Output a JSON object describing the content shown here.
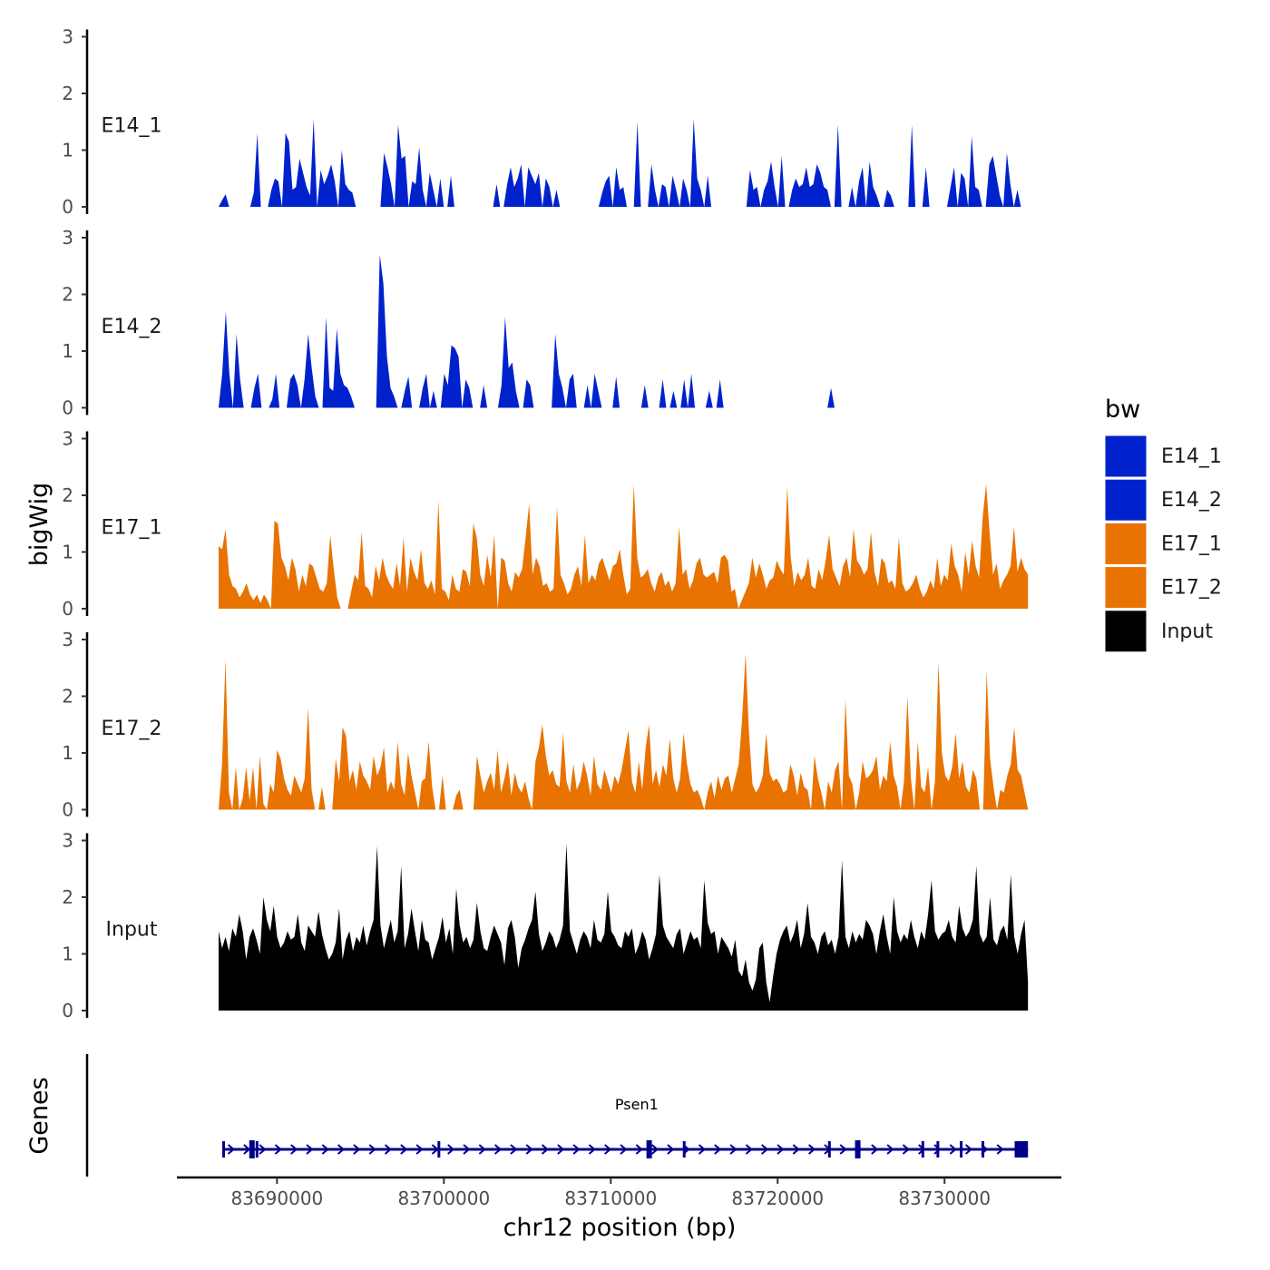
{
  "chart_data": {
    "type": "area",
    "title": "",
    "ylabel": "bigWig",
    "xlabel": "chr12 position (bp)",
    "gene_panel_label": "Genes",
    "xlim": [
      83684000,
      83737000
    ],
    "x_start": 83686500,
    "x_end": 83735000,
    "ylim": [
      0,
      3
    ],
    "y_ticks": [
      "0",
      "1",
      "2",
      "3"
    ],
    "x_ticks": [
      {
        "value": 83690000,
        "label": "83690000"
      },
      {
        "value": 83700000,
        "label": "83700000"
      },
      {
        "value": 83710000,
        "label": "83710000"
      },
      {
        "value": 83720000,
        "label": "83720000"
      },
      {
        "value": 83730000,
        "label": "83730000"
      }
    ],
    "legend": {
      "title": "bw",
      "entries": [
        {
          "name": "E14_1",
          "color": "#0022CC"
        },
        {
          "name": "E14_2",
          "color": "#0022CC"
        },
        {
          "name": "E17_1",
          "color": "#E87300"
        },
        {
          "name": "E17_2",
          "color": "#E87300"
        },
        {
          "name": "Input",
          "color": "#000000"
        }
      ]
    },
    "series": [
      {
        "name": "E14_1",
        "color": "#0022CC",
        "values": [
          0.0,
          0.12,
          0.22,
          0.0,
          0.0,
          0.0,
          0.0,
          0.0,
          0.0,
          0.0,
          0.25,
          1.3,
          0.0,
          0.0,
          0.0,
          0.3,
          0.5,
          0.45,
          0.0,
          1.3,
          1.15,
          0.3,
          0.35,
          0.85,
          0.6,
          0.35,
          0.2,
          1.55,
          0.0,
          0.65,
          0.4,
          0.55,
          0.75,
          0.45,
          0.0,
          1.0,
          0.4,
          0.3,
          0.25,
          0.0,
          0.0,
          0.0,
          0.0,
          0.0,
          0.0,
          0.0,
          0.0,
          0.95,
          0.7,
          0.4,
          0.0,
          1.45,
          0.85,
          0.9,
          0.0,
          0.45,
          0.4,
          1.05,
          0.3,
          0.0,
          0.6,
          0.3,
          0.0,
          0.5,
          0.0,
          0.0,
          0.55,
          0.0,
          0.0,
          0.0,
          0.0,
          0.0,
          0.0,
          0.0,
          0.0,
          0.0,
          0.0,
          0.0,
          0.0,
          0.4,
          0.0,
          0.0,
          0.4,
          0.7,
          0.35,
          0.5,
          0.75,
          0.0,
          0.7,
          0.55,
          0.4,
          0.6,
          0.0,
          0.5,
          0.35,
          0.0,
          0.3,
          0.0,
          0.0,
          0.0,
          0.0,
          0.0,
          0.0,
          0.0,
          0.0,
          0.0,
          0.0,
          0.0,
          0.0,
          0.25,
          0.45,
          0.55,
          0.0,
          0.7,
          0.3,
          0.35,
          0.0,
          0.0,
          0.0,
          1.5,
          0.0,
          0.0,
          0.0,
          0.75,
          0.3,
          0.0,
          0.4,
          0.35,
          0.0,
          0.55,
          0.3,
          0.0,
          0.5,
          0.3,
          0.0,
          1.55,
          0.5,
          0.3,
          0.0,
          0.55,
          0.0,
          0.0,
          0.0,
          0.0,
          0.0,
          0.0,
          0.0,
          0.0,
          0.0,
          0.0,
          0.0,
          0.65,
          0.3,
          0.35,
          0.0,
          0.3,
          0.45,
          0.8,
          0.35,
          0.0,
          0.9,
          0.0,
          0.0,
          0.3,
          0.5,
          0.35,
          0.4,
          0.7,
          0.35,
          0.4,
          0.75,
          0.6,
          0.35,
          0.3,
          0.0,
          0.0,
          1.45,
          0.0,
          0.0,
          0.0,
          0.35,
          0.0,
          0.45,
          0.7,
          0.0,
          0.8,
          0.35,
          0.2,
          0.0,
          0.0,
          0.3,
          0.2,
          0.0,
          0.0,
          0.0,
          0.0,
          0.0,
          1.45,
          0.0,
          0.0,
          0.0,
          0.7,
          0.0,
          0.0,
          0.0,
          0.0,
          0.0,
          0.0,
          0.35,
          0.7,
          0.0,
          0.6,
          0.5,
          0.0,
          1.25,
          0.35,
          0.3,
          0.0,
          0.0,
          0.75,
          0.9,
          0.55,
          0.2,
          0.0,
          0.95,
          0.4,
          0.0,
          0.3,
          0.0,
          0.0,
          0.0
        ]
      },
      {
        "name": "E14_2",
        "color": "#0022CC",
        "values": [
          0.0,
          0.6,
          1.7,
          0.6,
          0.0,
          1.3,
          0.5,
          0.0,
          0.0,
          0.0,
          0.35,
          0.6,
          0.0,
          0.0,
          0.0,
          0.15,
          0.6,
          0.0,
          0.0,
          0.0,
          0.5,
          0.6,
          0.4,
          0.0,
          0.5,
          1.3,
          0.7,
          0.2,
          0.0,
          0.0,
          1.6,
          0.35,
          0.3,
          1.4,
          0.6,
          0.4,
          0.35,
          0.2,
          0.0,
          0.0,
          0.0,
          0.0,
          0.0,
          0.0,
          0.0,
          2.7,
          2.2,
          0.9,
          0.35,
          0.2,
          0.0,
          0.0,
          0.3,
          0.55,
          0.0,
          0.0,
          0.0,
          0.35,
          0.6,
          0.0,
          0.3,
          0.0,
          0.0,
          0.6,
          0.4,
          1.1,
          1.05,
          0.9,
          0.0,
          0.5,
          0.35,
          0.0,
          0.0,
          0.0,
          0.4,
          0.0,
          0.0,
          0.0,
          0.0,
          0.4,
          1.6,
          0.7,
          0.8,
          0.3,
          0.0,
          0.0,
          0.5,
          0.4,
          0.0,
          0.0,
          0.0,
          0.0,
          0.0,
          0.0,
          1.3,
          0.6,
          0.35,
          0.0,
          0.5,
          0.6,
          0.0,
          0.0,
          0.0,
          0.4,
          0.0,
          0.6,
          0.3,
          0.0,
          0.0,
          0.0,
          0.0,
          0.55,
          0.0,
          0.0,
          0.0,
          0.0,
          0.0,
          0.0,
          0.0,
          0.4,
          0.0,
          0.0,
          0.0,
          0.0,
          0.5,
          0.0,
          0.0,
          0.3,
          0.0,
          0.0,
          0.5,
          0.0,
          0.6,
          0.0,
          0.0,
          0.0,
          0.0,
          0.3,
          0.0,
          0.0,
          0.5,
          0.0,
          0.0,
          0.0,
          0.0,
          0.0,
          0.0,
          0.0,
          0.0,
          0.0,
          0.0,
          0.0,
          0.0,
          0.0,
          0.0,
          0.0,
          0.0,
          0.0,
          0.0,
          0.0,
          0.0,
          0.0,
          0.0,
          0.0,
          0.0,
          0.0,
          0.0,
          0.0,
          0.0,
          0.0,
          0.0,
          0.35,
          0.0,
          0.0,
          0.0,
          0.0,
          0.0,
          0.0,
          0.0,
          0.0,
          0.0,
          0.0,
          0.0,
          0.0,
          0.0,
          0.0,
          0.0,
          0.0,
          0.0,
          0.0,
          0.0,
          0.0,
          0.0,
          0.0,
          0.0,
          0.0,
          0.0,
          0.0,
          0.0,
          0.0,
          0.0,
          0.0,
          0.0,
          0.0,
          0.0,
          0.0,
          0.0,
          0.0,
          0.0,
          0.0,
          0.0,
          0.0,
          0.0,
          0.0,
          0.0,
          0.0,
          0.0,
          0.0,
          0.0,
          0.0,
          0.0,
          0.0,
          0.0,
          0.0,
          0.0,
          0.0,
          0.0
        ]
      },
      {
        "name": "E17_1",
        "color": "#E87300",
        "values": [
          1.1,
          1.05,
          1.4,
          0.6,
          0.4,
          0.35,
          0.2,
          0.3,
          0.45,
          0.25,
          0.15,
          0.25,
          0.1,
          0.25,
          0.15,
          0.0,
          1.55,
          1.5,
          0.9,
          0.75,
          0.5,
          0.9,
          0.7,
          0.3,
          0.6,
          0.4,
          0.8,
          0.75,
          0.55,
          0.35,
          0.3,
          0.45,
          1.3,
          0.7,
          0.2,
          0.0,
          0.0,
          0.0,
          0.3,
          0.6,
          0.5,
          1.35,
          0.4,
          0.35,
          0.2,
          0.75,
          0.5,
          0.9,
          0.6,
          0.45,
          0.35,
          0.8,
          0.4,
          1.25,
          0.3,
          0.9,
          0.65,
          0.5,
          1.05,
          0.45,
          0.35,
          0.5,
          0.25,
          1.9,
          0.35,
          0.3,
          0.15,
          0.6,
          0.35,
          0.3,
          0.7,
          0.65,
          0.4,
          1.5,
          1.25,
          0.6,
          0.4,
          0.95,
          0.55,
          1.3,
          0.0,
          0.9,
          0.85,
          0.45,
          0.3,
          0.65,
          0.55,
          0.7,
          1.25,
          1.85,
          0.6,
          0.9,
          0.75,
          0.4,
          0.45,
          0.3,
          0.35,
          1.8,
          0.6,
          0.45,
          0.25,
          0.35,
          0.6,
          0.75,
          0.4,
          1.3,
          0.45,
          0.6,
          0.5,
          0.8,
          0.9,
          0.7,
          0.5,
          0.75,
          0.8,
          1.05,
          0.6,
          0.25,
          0.35,
          2.2,
          0.9,
          0.55,
          0.6,
          0.7,
          0.45,
          0.3,
          0.55,
          0.65,
          0.4,
          0.5,
          0.3,
          0.45,
          1.45,
          0.6,
          0.7,
          0.35,
          0.5,
          0.8,
          0.9,
          0.6,
          0.55,
          0.6,
          0.65,
          0.45,
          0.9,
          0.95,
          0.85,
          0.3,
          0.35,
          0.0,
          0.15,
          0.3,
          0.45,
          0.9,
          0.55,
          0.8,
          0.6,
          0.35,
          0.5,
          0.55,
          0.85,
          0.7,
          0.6,
          2.15,
          0.9,
          0.4,
          0.65,
          0.5,
          0.6,
          0.9,
          0.4,
          0.35,
          0.7,
          0.5,
          0.85,
          1.3,
          0.7,
          0.55,
          0.4,
          0.75,
          0.9,
          0.55,
          1.4,
          0.85,
          0.75,
          0.6,
          0.7,
          1.35,
          0.65,
          0.4,
          0.9,
          0.8,
          0.45,
          0.5,
          0.35,
          1.25,
          0.45,
          0.3,
          0.35,
          0.45,
          0.6,
          0.35,
          0.2,
          0.3,
          0.5,
          0.35,
          0.9,
          0.4,
          0.6,
          0.5,
          1.15,
          0.75,
          0.6,
          0.3,
          1.0,
          0.6,
          1.2,
          0.75,
          0.55,
          1.6,
          2.2,
          1.35,
          0.6,
          0.8,
          0.35,
          0.5,
          0.6,
          0.75,
          1.45,
          0.65,
          0.9,
          0.7,
          0.6
        ]
      },
      {
        "name": "E17_2",
        "color": "#E87300",
        "values": [
          0.0,
          0.8,
          2.65,
          0.3,
          0.0,
          0.75,
          0.0,
          0.2,
          0.75,
          0.15,
          0.75,
          0.0,
          0.95,
          0.1,
          0.0,
          0.45,
          0.3,
          1.05,
          0.9,
          0.55,
          0.35,
          0.25,
          0.6,
          0.45,
          0.3,
          0.55,
          1.8,
          0.35,
          0.0,
          0.0,
          0.4,
          0.0,
          0.0,
          0.0,
          0.9,
          0.5,
          1.45,
          1.3,
          0.5,
          0.7,
          0.35,
          0.85,
          0.6,
          0.5,
          0.35,
          0.95,
          0.6,
          0.75,
          1.1,
          0.3,
          0.5,
          0.35,
          1.2,
          0.45,
          0.25,
          1.0,
          0.6,
          0.3,
          0.0,
          0.5,
          0.55,
          1.2,
          0.4,
          0.0,
          0.0,
          0.6,
          0.0,
          0.0,
          0.0,
          0.25,
          0.35,
          0.0,
          0.0,
          0.0,
          0.0,
          0.95,
          0.6,
          0.3,
          0.5,
          0.65,
          0.35,
          1.05,
          0.3,
          0.55,
          0.85,
          0.25,
          0.65,
          0.4,
          0.3,
          0.5,
          0.2,
          0.0,
          0.85,
          1.1,
          1.5,
          0.95,
          0.6,
          0.7,
          0.45,
          0.4,
          1.35,
          0.5,
          0.3,
          0.8,
          0.35,
          0.5,
          0.85,
          0.6,
          0.25,
          0.95,
          0.45,
          0.35,
          0.7,
          0.5,
          0.3,
          0.6,
          0.45,
          0.7,
          1.05,
          1.4,
          0.5,
          0.3,
          0.85,
          0.35,
          1.1,
          1.5,
          0.45,
          0.7,
          0.4,
          0.8,
          0.6,
          1.25,
          0.55,
          0.3,
          0.55,
          1.35,
          0.8,
          0.45,
          0.3,
          0.35,
          0.2,
          0.0,
          0.3,
          0.5,
          0.2,
          0.6,
          0.35,
          0.55,
          0.6,
          0.3,
          0.55,
          0.8,
          1.6,
          2.75,
          1.35,
          0.45,
          0.3,
          0.4,
          0.6,
          1.35,
          0.65,
          0.5,
          0.55,
          0.45,
          0.3,
          0.35,
          0.8,
          0.6,
          0.25,
          0.65,
          0.4,
          0.35,
          0.0,
          0.95,
          0.55,
          0.3,
          0.0,
          0.5,
          0.3,
          0.7,
          0.85,
          0.0,
          1.95,
          0.6,
          0.45,
          0.0,
          0.3,
          0.85,
          0.55,
          0.6,
          0.7,
          0.95,
          0.35,
          0.6,
          0.5,
          1.2,
          0.6,
          0.4,
          0.0,
          0.5,
          2.0,
          0.55,
          0.0,
          1.2,
          0.4,
          0.3,
          0.75,
          0.0,
          0.5,
          2.6,
          1.0,
          0.6,
          0.5,
          0.75,
          1.35,
          0.55,
          0.85,
          0.4,
          0.3,
          0.7,
          0.55,
          0.0,
          0.0,
          2.45,
          0.9,
          0.4,
          0.0,
          0.35,
          0.3,
          0.6,
          0.8,
          1.45,
          0.7,
          0.6,
          0.3,
          0.0
        ]
      },
      {
        "name": "Input",
        "color": "#000000",
        "values": [
          1.4,
          1.1,
          1.3,
          1.05,
          1.45,
          1.3,
          1.7,
          1.4,
          0.9,
          1.3,
          1.45,
          1.25,
          1.0,
          2.0,
          1.6,
          1.4,
          1.85,
          1.3,
          1.1,
          1.2,
          1.4,
          1.25,
          1.3,
          1.7,
          1.2,
          1.05,
          1.5,
          1.4,
          1.3,
          1.75,
          1.35,
          1.1,
          0.9,
          1.0,
          1.2,
          1.8,
          0.9,
          1.25,
          1.4,
          1.05,
          1.3,
          1.2,
          1.5,
          1.15,
          1.4,
          1.6,
          2.9,
          1.5,
          1.1,
          1.35,
          1.6,
          1.2,
          1.4,
          2.55,
          1.1,
          1.35,
          1.8,
          1.4,
          1.05,
          1.6,
          1.25,
          1.2,
          0.9,
          1.1,
          1.3,
          1.65,
          1.2,
          1.45,
          1.0,
          2.15,
          1.5,
          1.2,
          1.3,
          1.1,
          1.25,
          1.9,
          1.4,
          1.1,
          1.05,
          1.3,
          1.5,
          1.35,
          1.2,
          0.8,
          1.45,
          1.6,
          1.3,
          0.75,
          1.1,
          1.25,
          1.45,
          1.6,
          2.1,
          1.35,
          1.05,
          1.2,
          1.4,
          1.3,
          1.1,
          1.25,
          1.5,
          2.95,
          1.4,
          1.2,
          1.0,
          1.25,
          1.4,
          1.3,
          1.1,
          1.6,
          1.25,
          1.2,
          1.35,
          2.1,
          1.4,
          1.3,
          1.15,
          1.1,
          1.4,
          1.3,
          1.45,
          1.0,
          1.15,
          1.4,
          1.25,
          0.9,
          1.1,
          1.35,
          2.4,
          1.5,
          1.3,
          1.2,
          1.1,
          1.35,
          1.45,
          1.0,
          1.2,
          1.4,
          1.25,
          1.3,
          1.1,
          2.3,
          1.55,
          1.35,
          1.4,
          1.0,
          1.3,
          1.2,
          1.1,
          0.95,
          1.25,
          0.7,
          0.6,
          0.9,
          0.5,
          0.35,
          0.55,
          1.1,
          1.2,
          0.5,
          0.15,
          0.6,
          1.0,
          1.25,
          1.4,
          1.5,
          1.2,
          1.35,
          1.6,
          1.1,
          1.35,
          1.9,
          1.3,
          1.2,
          1.0,
          1.3,
          1.4,
          1.15,
          1.25,
          1.0,
          1.3,
          2.65,
          1.3,
          1.1,
          1.4,
          1.2,
          1.35,
          1.25,
          1.6,
          1.5,
          1.35,
          1.0,
          1.4,
          1.7,
          1.3,
          1.0,
          2.0,
          1.4,
          1.2,
          1.35,
          1.25,
          1.6,
          1.3,
          1.1,
          1.4,
          1.25,
          1.7,
          2.3,
          1.4,
          1.25,
          1.35,
          1.4,
          1.6,
          1.3,
          1.2,
          1.85,
          1.45,
          1.3,
          1.4,
          1.6,
          2.55,
          1.35,
          1.2,
          1.3,
          2.0,
          1.25,
          1.15,
          1.4,
          1.5,
          1.25,
          2.4,
          1.3,
          1.0,
          1.35,
          1.6,
          0.5
        ]
      }
    ],
    "genes": [
      {
        "name": "Psen1",
        "start": 83686800,
        "end": 83735000,
        "strand": "+",
        "color": "#00008B",
        "exons": [
          83686800,
          83688500,
          83688800,
          83699700,
          83712300,
          83714400,
          83723100,
          83724800,
          83728700,
          83729600,
          83731000,
          83732300,
          83734200
        ]
      }
    ]
  }
}
